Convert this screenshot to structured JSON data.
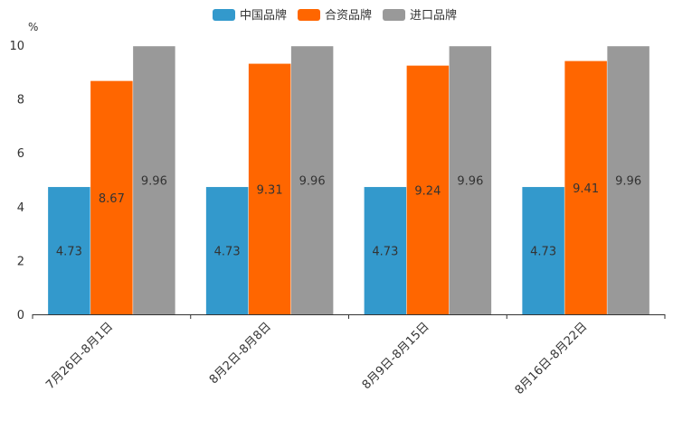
{
  "chart_data": {
    "type": "bar",
    "unit": "%",
    "categories": [
      "7月26日-8月1日",
      "8月2日-8月8日",
      "8月9日-8月15日",
      "8月16日-8月22日"
    ],
    "series": [
      {
        "name": "中国品牌",
        "color": "#3399cc",
        "values": [
          4.73,
          4.73,
          4.73,
          4.73
        ]
      },
      {
        "name": "合资品牌",
        "color": "#ff6600",
        "values": [
          8.67,
          9.31,
          9.24,
          9.41
        ]
      },
      {
        "name": "进口品牌",
        "color": "#999999",
        "values": [
          9.96,
          9.96,
          9.96,
          9.96
        ]
      }
    ],
    "ylim": [
      0,
      10
    ],
    "yticks": [
      0,
      2,
      4,
      6,
      8,
      10
    ],
    "legend_position": "top-center"
  }
}
